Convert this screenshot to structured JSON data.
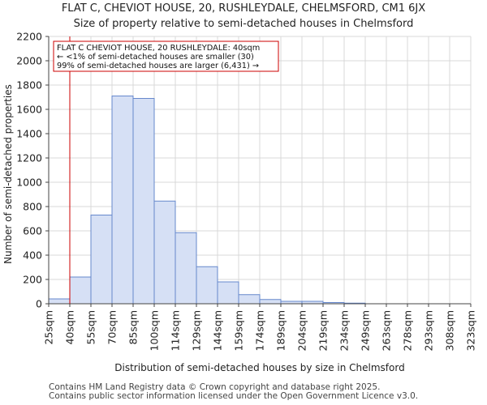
{
  "title_line1": "FLAT C, CHEVIOT HOUSE, 20, RUSHLEYDALE, CHELMSFORD, CM1 6JX",
  "title_line2": "Size of property relative to semi-detached houses in Chelmsford",
  "footer_line1": "Contains HM Land Registry data © Crown copyright and database right 2025.",
  "footer_line2": "Contains public sector information licensed under the Open Government Licence v3.0.",
  "chart_data": {
    "type": "bar",
    "title": "Size of property relative to semi-detached houses in Chelmsford",
    "xlabel": "Distribution of semi-detached houses by size in Chelmsford",
    "ylabel": "Number of semi-detached properties",
    "categories": [
      "25sqm",
      "40sqm",
      "55sqm",
      "70sqm",
      "85sqm",
      "100sqm",
      "114sqm",
      "129sqm",
      "144sqm",
      "159sqm",
      "174sqm",
      "189sqm",
      "204sqm",
      "219sqm",
      "234sqm",
      "249sqm",
      "263sqm",
      "278sqm",
      "293sqm",
      "308sqm",
      "323sqm"
    ],
    "values": [
      40,
      220,
      730,
      1710,
      1690,
      845,
      585,
      305,
      180,
      75,
      35,
      20,
      20,
      10,
      5,
      0,
      0,
      0,
      0,
      0,
      0
    ],
    "ylim": [
      0,
      2200
    ],
    "yticks": [
      0,
      200,
      400,
      600,
      800,
      1000,
      1200,
      1400,
      1600,
      1800,
      2000,
      2200
    ],
    "grid": true,
    "bar_color": "#d6e0f5",
    "bar_edge_color": "#6688cc",
    "marker": {
      "x_index": 1,
      "color": "#cc0000",
      "annotation": [
        "FLAT C CHEVIOT HOUSE, 20 RUSHLEYDALE: 40sqm",
        "← <1% of semi-detached houses are smaller (30)",
        "99% of semi-detached houses are larger (6,431) →"
      ]
    }
  }
}
